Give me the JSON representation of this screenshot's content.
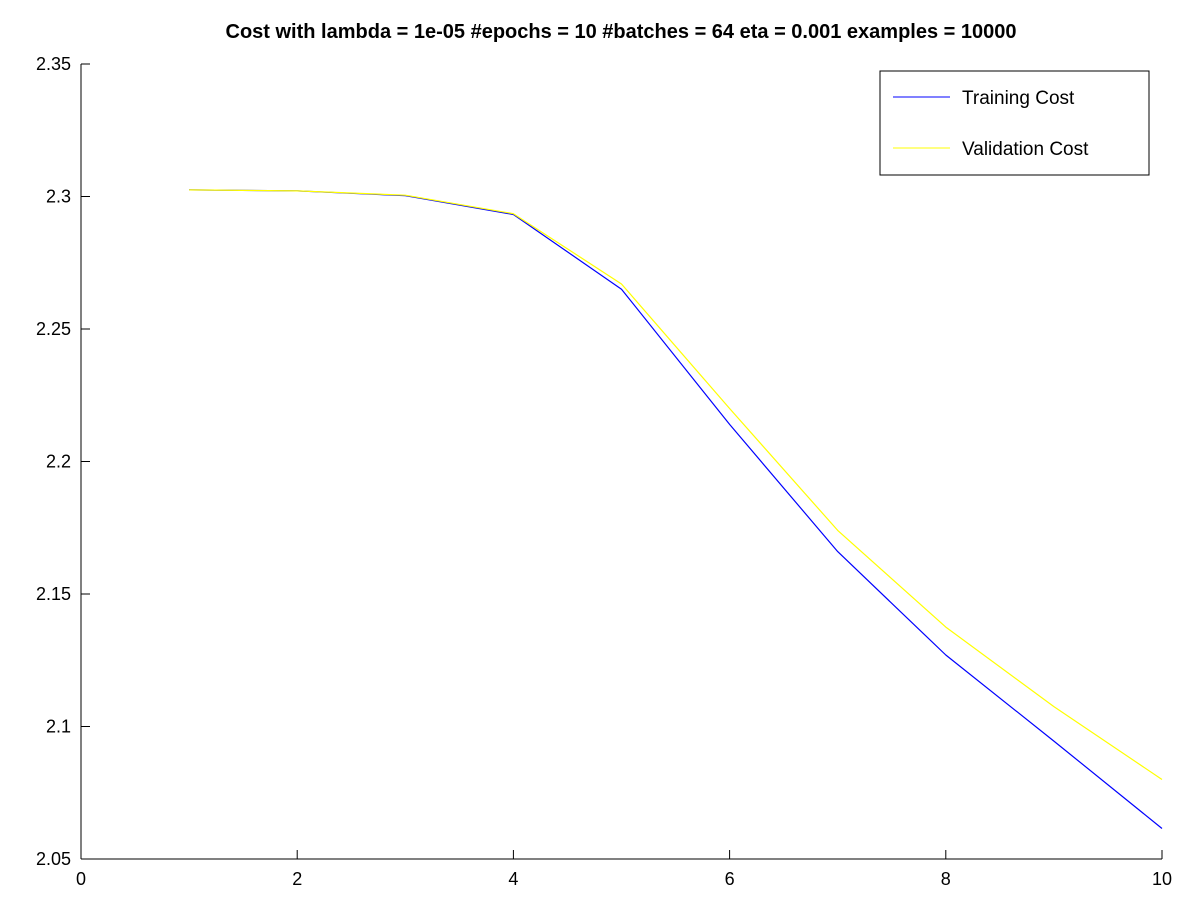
{
  "chart_data": {
    "type": "line",
    "title": "Cost with lambda = 1e-05 #epochs = 10 #batches = 64 eta = 0.001 examples = 10000",
    "xlabel": "",
    "ylabel": "",
    "xlim": [
      0,
      10
    ],
    "ylim": [
      2.05,
      2.35
    ],
    "x_ticks": [
      0,
      2,
      4,
      6,
      8,
      10
    ],
    "y_ticks": [
      2.05,
      2.1,
      2.15,
      2.2,
      2.25,
      2.3,
      2.35
    ],
    "x_tick_labels": [
      "0",
      "2",
      "4",
      "6",
      "8",
      "10"
    ],
    "y_tick_labels": [
      "2.05",
      "2.1",
      "2.15",
      "2.2",
      "2.25",
      "2.3",
      "2.35"
    ],
    "grid": false,
    "legend_position": "top-right",
    "x": [
      1,
      2,
      3,
      4,
      5,
      6,
      7,
      8,
      9,
      10
    ],
    "series": [
      {
        "name": "Training Cost",
        "color": "#0000ff",
        "values": [
          2.3025,
          2.3021,
          2.3003,
          2.2932,
          2.265,
          2.214,
          2.166,
          2.127,
          2.0945,
          2.0615
        ]
      },
      {
        "name": "Validation Cost",
        "color": "#ffff00",
        "values": [
          2.3025,
          2.3021,
          2.3005,
          2.2935,
          2.267,
          2.22,
          2.174,
          2.1375,
          2.1075,
          2.08
        ]
      }
    ]
  }
}
